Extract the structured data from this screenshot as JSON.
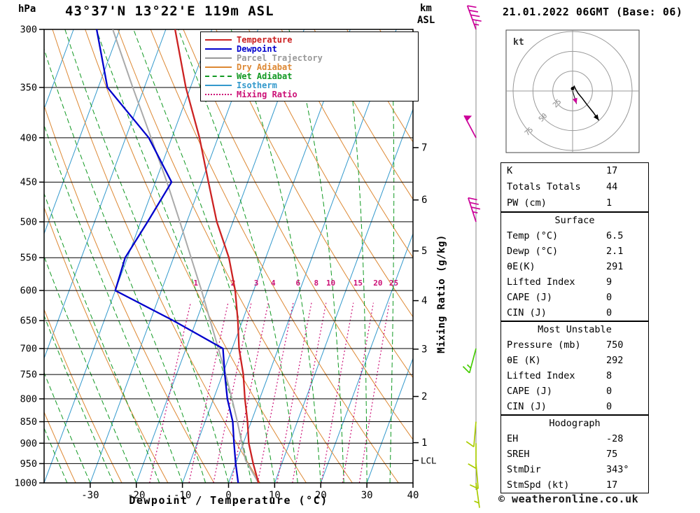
{
  "header": {
    "station": "43°37'N 13°22'E 119m ASL",
    "datetime": "21.01.2022 06GMT (Base: 06)",
    "pressure_unit": "hPa",
    "altitude_unit_km": "km",
    "altitude_unit_asl": "ASL"
  },
  "axes": {
    "xlabel": "Dewpoint / Temperature (°C)",
    "right_label": "Mixing Ratio (g/kg)",
    "lcl_label": "LCL"
  },
  "legend": {
    "items": [
      {
        "label": "Temperature",
        "color": "#cc2222",
        "dash": "solid"
      },
      {
        "label": "Dewpoint",
        "color": "#0000cc",
        "dash": "solid"
      },
      {
        "label": "Parcel Trajectory",
        "color": "#999999",
        "dash": "solid"
      },
      {
        "label": "Dry Adiabat",
        "color": "#dd8833",
        "dash": "solid"
      },
      {
        "label": "Wet Adiabat",
        "color": "#119922",
        "dash": "dashed"
      },
      {
        "label": "Isotherm",
        "color": "#3399cc",
        "dash": "solid"
      },
      {
        "label": "Mixing Ratio",
        "color": "#cc1177",
        "dash": "dotted"
      }
    ]
  },
  "chart_data": {
    "type": "skewt-log-p",
    "pressure_axis_hpa": [
      300,
      350,
      400,
      450,
      500,
      550,
      600,
      650,
      700,
      750,
      800,
      850,
      900,
      950,
      1000
    ],
    "temp_axis_c": [
      -30,
      -20,
      -10,
      0,
      10,
      20,
      30,
      40
    ],
    "km_asl_ticks": [
      1,
      2,
      3,
      4,
      5,
      6,
      7
    ],
    "mixing_ratio_gkg": [
      1,
      2,
      3,
      4,
      6,
      8,
      10,
      15,
      20,
      25
    ],
    "lcl_pressure_hpa": 942,
    "sounding": {
      "pressure_hpa": [
        1000,
        950,
        900,
        850,
        800,
        750,
        700,
        650,
        600,
        550,
        500,
        450,
        400,
        350,
        300
      ],
      "temperature_c": [
        6.5,
        3.8,
        1.2,
        -0.8,
        -3.2,
        -5.5,
        -8.5,
        -11.0,
        -14.0,
        -18.0,
        -23.5,
        -28.5,
        -34.0,
        -41.0,
        -48.0
      ],
      "dewpoint_c": [
        2.1,
        0.0,
        -2.0,
        -4.0,
        -7.0,
        -9.5,
        -12.0,
        -25.0,
        -40.0,
        -40.5,
        -38.5,
        -36.5,
        -45.0,
        -58.0,
        -65.0
      ]
    },
    "parcel": {
      "pressure_hpa": [
        1000,
        942,
        900,
        850,
        800,
        750,
        700,
        650,
        600,
        550,
        500,
        450,
        400,
        350,
        300
      ],
      "temp_c": [
        6.5,
        1.9,
        -0.3,
        -3.0,
        -6.0,
        -9.3,
        -13.0,
        -17.0,
        -21.3,
        -26.2,
        -31.5,
        -37.5,
        -44.5,
        -52.5,
        -61.5
      ]
    },
    "wind_barbs": [
      {
        "pressure_hpa": 300,
        "speed_kt": 45,
        "dir_deg": 340,
        "color": "#cc0099"
      },
      {
        "pressure_hpa": 400,
        "speed_kt": 50,
        "dir_deg": 332,
        "color": "#cc0099"
      },
      {
        "pressure_hpa": 500,
        "speed_kt": 35,
        "dir_deg": 342,
        "color": "#cc0099"
      },
      {
        "pressure_hpa": 700,
        "speed_kt": 15,
        "dir_deg": 195,
        "color": "#44cc00"
      },
      {
        "pressure_hpa": 850,
        "speed_kt": 10,
        "dir_deg": 185,
        "color": "#aacc00"
      },
      {
        "pressure_hpa": 900,
        "speed_kt": 10,
        "dir_deg": 180,
        "color": "#aacc00"
      },
      {
        "pressure_hpa": 950,
        "speed_kt": 10,
        "dir_deg": 175,
        "color": "#aacc00"
      },
      {
        "pressure_hpa": 1000,
        "speed_kt": 5,
        "dir_deg": 172,
        "color": "#aacc00"
      }
    ],
    "colors": {
      "temperature": "#cc2222",
      "dewpoint": "#0000cc",
      "parcel": "#aaaaaa",
      "dry_adiabat": "#dd8833",
      "wet_adiabat": "#119922",
      "isotherm": "#3399cc",
      "mixing_ratio": "#cc1177",
      "grid": "#000000",
      "barb_staff_line": "#888888"
    }
  },
  "hodograph": {
    "unit_label": "kt",
    "rings_kt": [
      25,
      50,
      75
    ],
    "trace_uv_kt": [
      [
        0,
        3
      ],
      [
        2,
        6
      ],
      [
        4,
        2
      ],
      [
        7,
        -3
      ],
      [
        12,
        -9
      ],
      [
        18,
        -17
      ],
      [
        26,
        -27
      ],
      [
        33,
        -37
      ]
    ],
    "storm_motion": {
      "dir_deg": 343,
      "speed_kt": 17
    },
    "ring_color": "#999999",
    "trace_color": "#000000",
    "storm_color": "#cc0099"
  },
  "tables": {
    "indices": {
      "rows": [
        {
          "label": "K",
          "value": "17"
        },
        {
          "label": "Totals Totals",
          "value": "44"
        },
        {
          "label": "PW (cm)",
          "value": "1"
        }
      ]
    },
    "surface": {
      "title": "Surface",
      "rows": [
        {
          "label": "Temp (°C)",
          "value": "6.5"
        },
        {
          "label": "Dewp (°C)",
          "value": "2.1"
        },
        {
          "label": "θE(K)",
          "value": "291"
        },
        {
          "label": "Lifted Index",
          "value": "9"
        },
        {
          "label": "CAPE (J)",
          "value": "0"
        },
        {
          "label": "CIN (J)",
          "value": "0"
        }
      ]
    },
    "most_unstable": {
      "title": "Most Unstable",
      "rows": [
        {
          "label": "Pressure (mb)",
          "value": "750"
        },
        {
          "label": "θE (K)",
          "value": "292"
        },
        {
          "label": "Lifted Index",
          "value": "8"
        },
        {
          "label": "CAPE (J)",
          "value": "0"
        },
        {
          "label": "CIN (J)",
          "value": "0"
        }
      ]
    },
    "hodograph": {
      "title": "Hodograph",
      "rows": [
        {
          "label": "EH",
          "value": "-28"
        },
        {
          "label": "SREH",
          "value": "75"
        },
        {
          "label": "StmDir",
          "value": "343°"
        },
        {
          "label": "StmSpd (kt)",
          "value": "17"
        }
      ]
    }
  },
  "footer": {
    "copyright": "© weatheronline.co.uk"
  }
}
